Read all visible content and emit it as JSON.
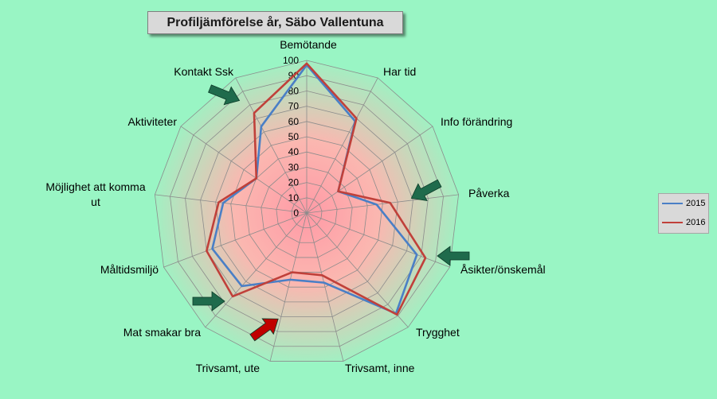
{
  "title": "Profiljämförelse år, Säbo Vallentuna",
  "colors": {
    "background": "#99f5c4",
    "series_2015": "#4a7fc6",
    "series_2016": "#c0403a",
    "arrow_green": "#1f6b4c",
    "arrow_red": "#c00000",
    "grid": "#8c8c8c"
  },
  "chart_data": {
    "type": "radar",
    "title": "Profiljämförelse år, Säbo Vallentuna",
    "categories": [
      "Bemötande",
      "Har tid",
      "Info förändring",
      "Påverka",
      "Åsikter/önskemål",
      "Trygghet",
      "Trivsamt, inne",
      "Trivsamt, ute",
      "Mat smakar bra",
      "Måltidsmiljö",
      "Möjlighet att komma ut",
      "Aktiviteter",
      "Kontakt Ssk"
    ],
    "series": [
      {
        "name": "2015",
        "values": [
          97,
          68,
          25,
          46,
          77,
          88,
          47,
          45,
          64,
          66,
          55,
          40,
          64
        ]
      },
      {
        "name": "2016",
        "values": [
          98,
          70,
          25,
          55,
          83,
          89,
          42,
          40,
          73,
          70,
          58,
          40,
          74
        ]
      }
    ],
    "rlim": [
      0,
      100
    ],
    "ticks": [
      "0",
      "10",
      "20",
      "30",
      "40",
      "50",
      "60",
      "70",
      "80",
      "90",
      "100"
    ],
    "grid": true,
    "legend": "right",
    "arrows": [
      {
        "color": "green",
        "axis": "Kontakt Ssk"
      },
      {
        "color": "green",
        "axis": "Påverka"
      },
      {
        "color": "green",
        "axis": "Åsikter/önskemål"
      },
      {
        "color": "green",
        "axis": "Mat smakar bra"
      },
      {
        "color": "red",
        "axis": "Trivsamt, ute"
      }
    ]
  }
}
